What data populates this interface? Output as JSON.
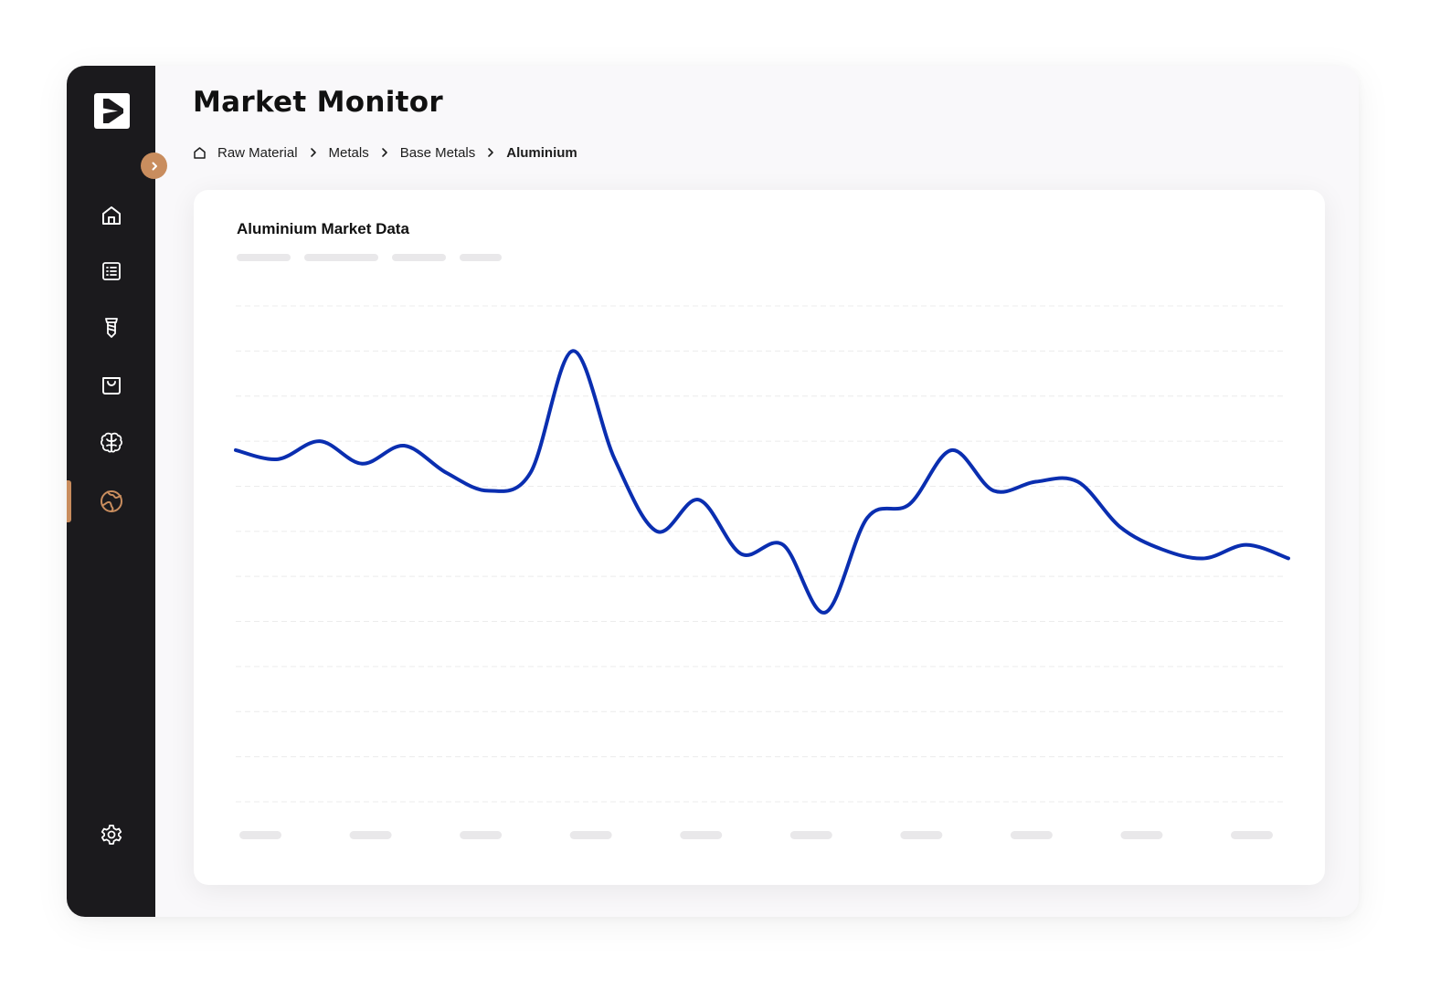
{
  "app": {
    "logo_icon": "play-logo-icon"
  },
  "header": {
    "title": "Market Monitor"
  },
  "breadcrumb": {
    "home_icon": "home-outline-icon",
    "items": [
      "Raw Material",
      "Metals",
      "Base Metals",
      "Aluminium"
    ]
  },
  "sidebar": {
    "toggle_icon": "chevron-right-icon",
    "items": [
      {
        "id": "home",
        "icon": "home-icon"
      },
      {
        "id": "list",
        "icon": "list-icon"
      },
      {
        "id": "screw",
        "icon": "screw-icon"
      },
      {
        "id": "shopping",
        "icon": "shopping-bag-icon"
      },
      {
        "id": "brain",
        "icon": "brain-icon"
      },
      {
        "id": "globe",
        "icon": "globe-icon",
        "active": true
      },
      {
        "id": "settings",
        "icon": "gear-icon"
      }
    ]
  },
  "colors": {
    "sidebar_bg": "#1b1a1d",
    "accent": "#c98d5e",
    "line": "#0a2eb0",
    "placeholder": "#e9e8ea"
  },
  "card": {
    "title": "Aluminium Market Data"
  },
  "chart_data": {
    "type": "line",
    "title": "Aluminium Market Data",
    "xlabel": "",
    "ylabel": "",
    "grid": true,
    "ylim": [
      0,
      11
    ],
    "x_tick_count": 10,
    "y_gridline_count": 12,
    "series": [
      {
        "x": [
          0,
          2,
          4,
          6,
          8,
          10,
          12,
          14,
          16,
          18,
          20,
          22,
          24,
          26,
          28,
          30,
          32,
          34,
          36,
          38,
          40,
          42,
          44,
          46,
          48,
          50
        ],
        "values": [
          7.8,
          7.6,
          8.0,
          7.5,
          7.9,
          7.3,
          6.9,
          7.3,
          10.0,
          7.6,
          6.0,
          6.7,
          5.5,
          5.7,
          4.2,
          6.3,
          6.6,
          7.8,
          6.9,
          7.1,
          7.1,
          6.1,
          5.6,
          5.4,
          5.7,
          5.4
        ]
      }
    ]
  }
}
